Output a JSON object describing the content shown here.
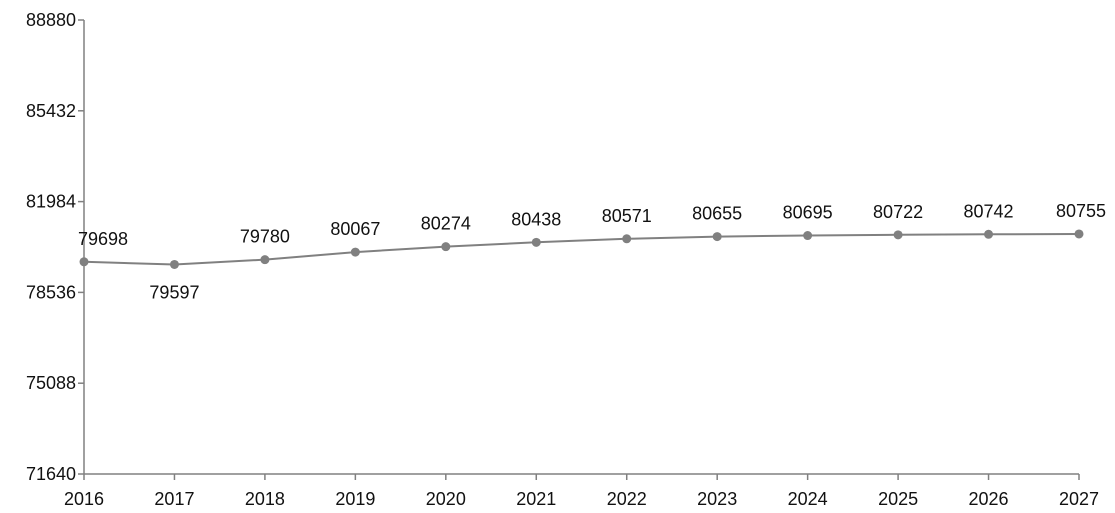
{
  "chart_data": {
    "type": "line",
    "title": "",
    "xlabel": "",
    "ylabel": "",
    "categories": [
      "2016",
      "2017",
      "2018",
      "2019",
      "2020",
      "2021",
      "2022",
      "2023",
      "2024",
      "2025",
      "2026",
      "2027"
    ],
    "series": [
      {
        "values": [
          79698,
          79597,
          79780,
          80067,
          80274,
          80438,
          80571,
          80655,
          80695,
          80722,
          80742,
          80755
        ],
        "color": "#808080"
      }
    ],
    "data_labels": [
      "79698",
      "79597",
      "79780",
      "80067",
      "80274",
      "80438",
      "80571",
      "80655",
      "80695",
      "80722",
      "80742",
      "80755"
    ],
    "ylim": [
      71640,
      88880
    ],
    "yticks": [
      71640,
      75088,
      78536,
      81984,
      85432,
      88880
    ],
    "ytick_labels": [
      "71640",
      "75088",
      "78536",
      "81984",
      "85432",
      "88880"
    ],
    "grid": false,
    "legend": "none",
    "axis_color": "#808080",
    "text_color": "#111111"
  }
}
